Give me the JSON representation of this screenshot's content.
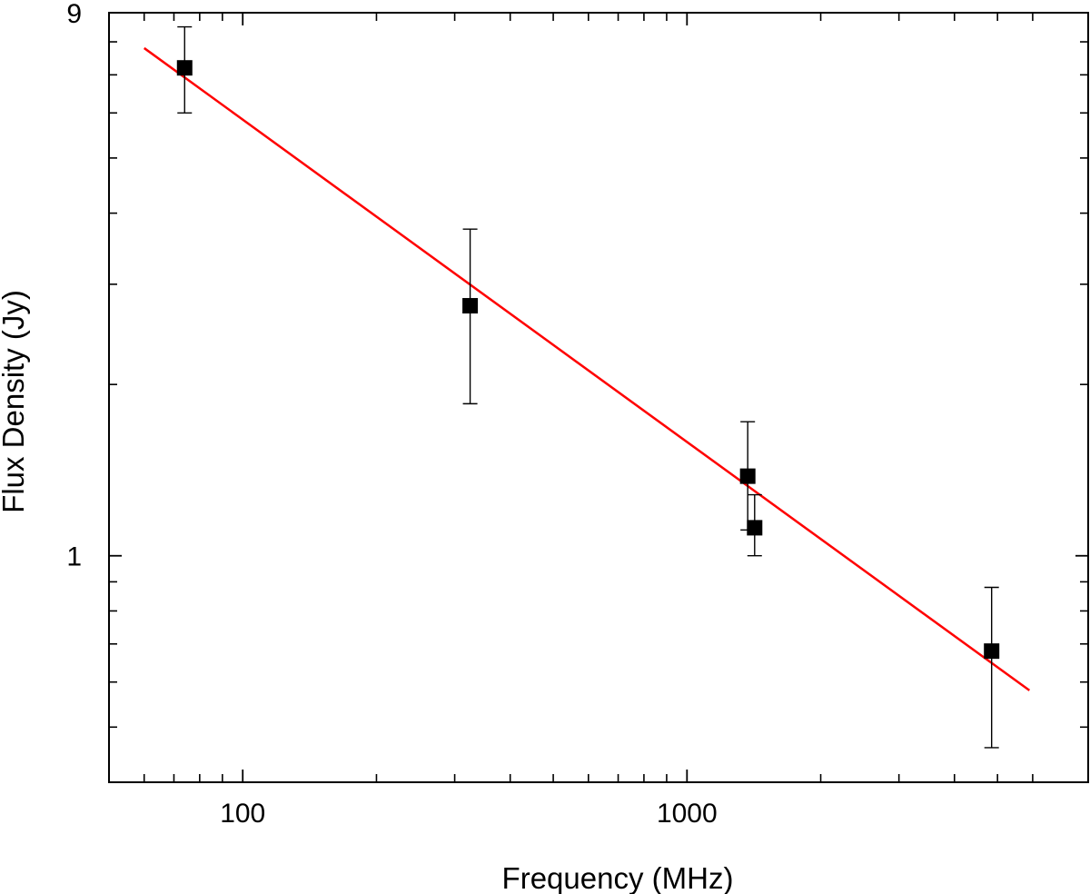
{
  "chart_data": {
    "type": "scatter",
    "title": "",
    "xlabel": "Frequency (MHz)",
    "ylabel": "Flux Density (Jy)",
    "x_scale": "log",
    "y_scale": "log",
    "xlim": [
      50,
      8000
    ],
    "ylim": [
      0.4,
      9
    ],
    "x_tick_labels": [
      {
        "value": 100,
        "label": "100"
      },
      {
        "value": 1000,
        "label": "1000"
      }
    ],
    "y_tick_labels": [
      {
        "value": 1,
        "label": "1"
      },
      {
        "value": 9,
        "label": "9"
      }
    ],
    "x_minor_ticks": [
      60,
      70,
      80,
      90,
      200,
      300,
      400,
      500,
      600,
      700,
      800,
      900,
      2000,
      3000,
      4000,
      5000,
      6000
    ],
    "y_minor_ticks": [
      0.5,
      0.6,
      0.7,
      0.8,
      0.9,
      2,
      3,
      4,
      5,
      6,
      7,
      8
    ],
    "grid": false,
    "series": [
      {
        "marker": "square",
        "color": "#000000",
        "points": [
          {
            "x": 74,
            "y": 7.2,
            "y_low": 6.0,
            "y_high": 8.5
          },
          {
            "x": 325,
            "y": 2.75,
            "y_low": 1.85,
            "y_high": 3.75
          },
          {
            "x": 1370,
            "y": 1.38,
            "y_low": 1.11,
            "y_high": 1.72
          },
          {
            "x": 1420,
            "y": 1.12,
            "y_low": 1.0,
            "y_high": 1.28
          },
          {
            "x": 4850,
            "y": 0.68,
            "y_low": 0.46,
            "y_high": 0.88
          }
        ]
      }
    ],
    "fit_line": {
      "color": "#ff0000",
      "x": [
        60,
        5900
      ],
      "y": [
        7.8,
        0.58
      ]
    }
  }
}
